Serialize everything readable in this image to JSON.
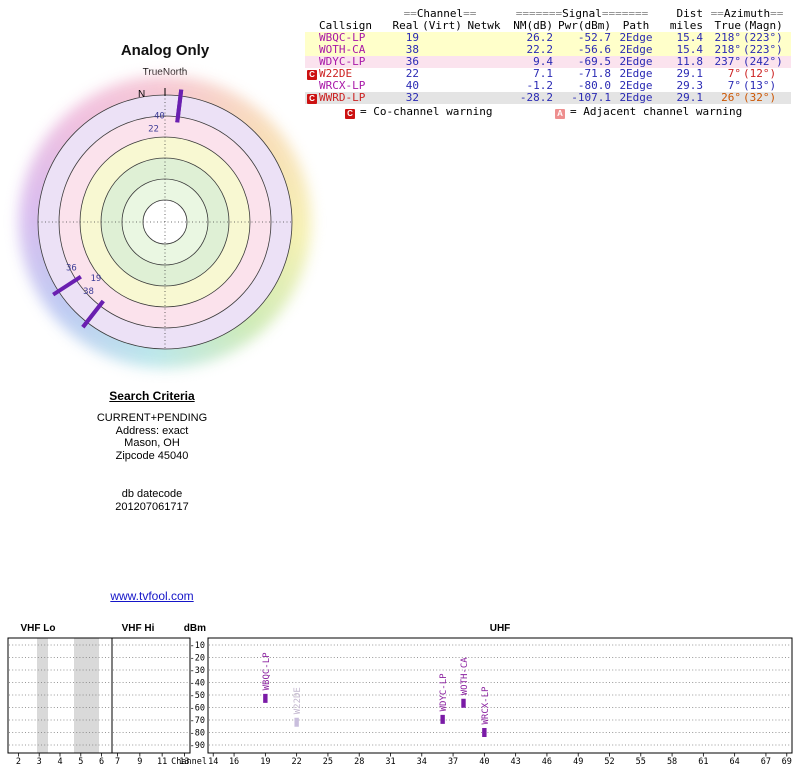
{
  "chart_data": [
    {
      "type": "scatter",
      "subtype": "polar-azimuth-radar",
      "title": "Analog Only",
      "orientation_label": "TrueNorth",
      "north_label": "N",
      "ring_colors": [
        "#ece1f6",
        "#fbe2ec",
        "#f8f8d2",
        "#dff0d5",
        "#eaf7e2",
        "#ffffff"
      ],
      "points": [
        {
          "channel": "40",
          "azimuth_deg": 7,
          "label_r": 0.84,
          "label_az": 357
        },
        {
          "channel": "22",
          "azimuth_deg": 7,
          "label_r": 0.74,
          "label_az": 353
        },
        {
          "channel": "19",
          "azimuth_deg": 218,
          "label_r": 0.7,
          "label_az": 231
        },
        {
          "channel": "38",
          "azimuth_deg": 218,
          "label_r": 0.81,
          "label_az": 228
        },
        {
          "channel": "36",
          "azimuth_deg": 237,
          "label_r": 0.82,
          "label_az": 244
        }
      ]
    },
    {
      "type": "bar",
      "title_sections": [
        "VHF Lo",
        "VHF Hi",
        "UHF"
      ],
      "ylabel": "dBm",
      "xlabel": "Channel",
      "ylim": [
        -90,
        -10
      ],
      "yticks": [
        -10,
        -20,
        -30,
        -40,
        -50,
        -60,
        -70,
        -80,
        -90
      ],
      "vhf_lo_ticks": [
        "2",
        "3",
        "4",
        "5",
        "6"
      ],
      "vhf_hi_ticks": [
        "7",
        "9",
        "11",
        "13"
      ],
      "uhf_ticks": [
        "14",
        "16",
        "19",
        "22",
        "25",
        "28",
        "31",
        "34",
        "37",
        "40",
        "43",
        "46",
        "49",
        "52",
        "55",
        "58",
        "61",
        "64",
        "67",
        "69"
      ],
      "bars": [
        {
          "callsign": "WBQC-LP",
          "channel": 19,
          "power_dbm": -52.7,
          "dimmed": false
        },
        {
          "callsign": "W22DE",
          "channel": 22,
          "power_dbm": -71.8,
          "dimmed": true
        },
        {
          "callsign": "WDYC-LP",
          "channel": 36,
          "power_dbm": -69.5,
          "dimmed": false
        },
        {
          "callsign": "WOTH-CA",
          "channel": 38,
          "power_dbm": -56.6,
          "dimmed": false
        },
        {
          "callsign": "WRCX-LP",
          "channel": 40,
          "power_dbm": -80.0,
          "dimmed": false
        }
      ]
    }
  ],
  "table": {
    "header_groups": {
      "channel_pre": "==",
      "channel": "Channel",
      "channel_post": "==",
      "signal_pre": "=======",
      "signal": "Signal",
      "signal_post": "=======",
      "dist": "Dist",
      "azimuth_pre": "==",
      "azimuth": "Azimuth",
      "azimuth_post": "=="
    },
    "columns": {
      "callsign": "Callsign",
      "real": "Real",
      "virt": "(Virt)",
      "netwk": "Netwk",
      "nm": "NM(dB)",
      "pwr": "Pwr(dBm)",
      "path": "Path",
      "miles": "miles",
      "true": "True",
      "magn": "(Magn)"
    },
    "rows": [
      {
        "warning": "",
        "callsign": "WBQC-LP",
        "real": "19",
        "virt": "",
        "netwk": "",
        "nm": "26.2",
        "pwr": "-52.7",
        "path": "2Edge",
        "miles": "15.4",
        "true": "218°",
        "magn": "(223°)",
        "tone": "yellow",
        "cs": "purple",
        "az": "blue"
      },
      {
        "warning": "",
        "callsign": "WOTH-CA",
        "real": "38",
        "virt": "",
        "netwk": "",
        "nm": "22.2",
        "pwr": "-56.6",
        "path": "2Edge",
        "miles": "15.4",
        "true": "218°",
        "magn": "(223°)",
        "tone": "yellow",
        "cs": "purple",
        "az": "blue"
      },
      {
        "warning": "",
        "callsign": "WDYC-LP",
        "real": "36",
        "virt": "",
        "netwk": "",
        "nm": "9.4",
        "pwr": "-69.5",
        "path": "2Edge",
        "miles": "11.8",
        "true": "237°",
        "magn": "(242°)",
        "tone": "pink",
        "cs": "purple",
        "az": "blue"
      },
      {
        "warning": "C",
        "callsign": "W22DE",
        "real": "22",
        "virt": "",
        "netwk": "",
        "nm": "7.1",
        "pwr": "-71.8",
        "path": "2Edge",
        "miles": "29.1",
        "true": "7°",
        "magn": "(12°)",
        "tone": "white",
        "cs": "red",
        "az": "red"
      },
      {
        "warning": "",
        "callsign": "WRCX-LP",
        "real": "40",
        "virt": "",
        "netwk": "",
        "nm": "-1.2",
        "pwr": "-80.0",
        "path": "2Edge",
        "miles": "29.3",
        "true": "7°",
        "magn": "(13°)",
        "tone": "white",
        "cs": "purple",
        "az": "blue"
      },
      {
        "warning": "C",
        "callsign": "WWRD-LP",
        "real": "32",
        "virt": "",
        "netwk": "",
        "nm": "-28.2",
        "pwr": "-107.1",
        "path": "2Edge",
        "miles": "29.1",
        "true": "26°",
        "magn": "(32°)",
        "tone": "gray",
        "cs": "red",
        "az": "orange"
      }
    ],
    "legend": {
      "co_icon": "C",
      "co_text": "= Co-channel warning",
      "adj_icon": "A",
      "adj_text": "= Adjacent channel warning"
    }
  },
  "search": {
    "heading": "Search Criteria",
    "line1": "CURRENT+PENDING",
    "line2": "Address: exact",
    "line3": "Mason, OH",
    "line4": "Zipcode 45040",
    "db_label": "db datecode",
    "db_value": "201207061717"
  },
  "link": {
    "text": "www.tvfool.com"
  }
}
